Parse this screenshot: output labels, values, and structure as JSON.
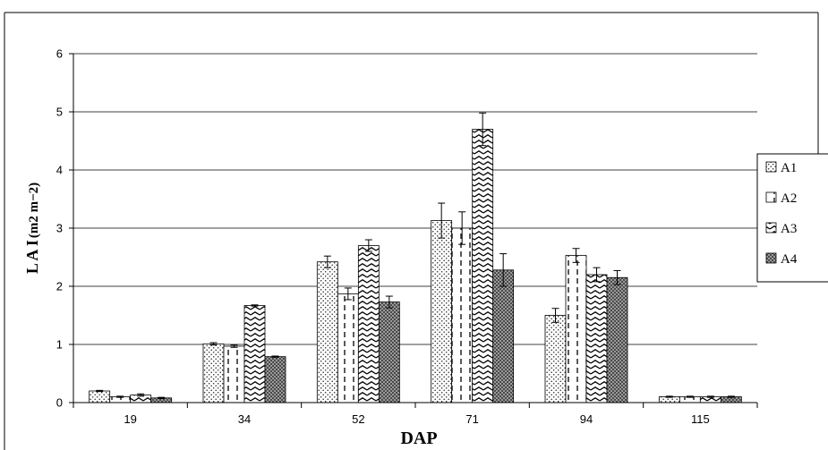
{
  "chart_data": {
    "type": "bar",
    "title": "",
    "xlabel": "DAP",
    "ylabel_main": "L A I",
    "ylabel_unit": "(m2 m−2)",
    "categories": [
      "19",
      "34",
      "52",
      "71",
      "94",
      "115"
    ],
    "ylim": [
      0,
      6
    ],
    "yticks": [
      "0",
      "1",
      "2",
      "3",
      "4",
      "5",
      "6"
    ],
    "grid": true,
    "legend_position": "right",
    "series": [
      {
        "name": "A1",
        "values": [
          0.2,
          1.01,
          2.42,
          3.13,
          1.5,
          0.1
        ],
        "errors": [
          0.01,
          0.02,
          0.1,
          0.3,
          0.12,
          0.01
        ],
        "pattern": "dots"
      },
      {
        "name": "A2",
        "values": [
          0.1,
          0.97,
          1.87,
          3.0,
          2.53,
          0.1
        ],
        "errors": [
          0.01,
          0.02,
          0.1,
          0.28,
          0.12,
          0.01
        ],
        "pattern": "dashes"
      },
      {
        "name": "A3",
        "values": [
          0.13,
          1.67,
          2.7,
          4.7,
          2.2,
          0.1
        ],
        "errors": [
          0.02,
          0.01,
          0.1,
          0.28,
          0.12,
          0.01
        ],
        "pattern": "zigzag"
      },
      {
        "name": "A4",
        "values": [
          0.08,
          0.79,
          1.73,
          2.28,
          2.15,
          0.1
        ],
        "errors": [
          0.01,
          0.01,
          0.1,
          0.28,
          0.12,
          0.01
        ],
        "pattern": "checker"
      }
    ]
  }
}
